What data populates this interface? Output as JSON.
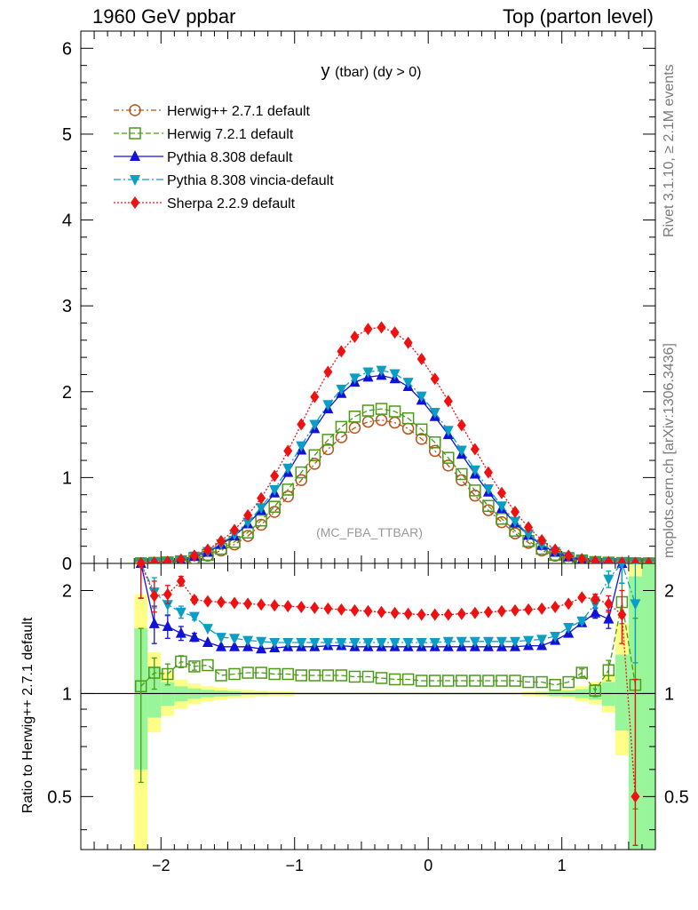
{
  "header": {
    "left": "1960 GeV ppbar",
    "right": "Top (parton level)"
  },
  "side_labels": {
    "rivet": "Rivet 3.1.10, ≥ 2.1M events",
    "mcplots": "mcplots.cern.ch [arXiv:1306.3436]"
  },
  "chart_data": [
    {
      "type": "line",
      "title": "y (tbar) (dy > 0)",
      "watermark": "(MC_FBA_TTBAR)",
      "xlim": [
        -2.6,
        1.7
      ],
      "ylim": [
        0,
        6.2
      ],
      "yticks": [
        0,
        1,
        2,
        3,
        4,
        5,
        6
      ],
      "xlabel": "",
      "ylabel": "",
      "legend_position": "top-left",
      "grid": false,
      "x": [
        -2.15,
        -2.05,
        -1.95,
        -1.85,
        -1.75,
        -1.65,
        -1.55,
        -1.45,
        -1.35,
        -1.25,
        -1.15,
        -1.05,
        -0.95,
        -0.85,
        -0.75,
        -0.65,
        -0.55,
        -0.45,
        -0.35,
        -0.25,
        -0.15,
        -0.05,
        0.05,
        0.15,
        0.25,
        0.35,
        0.45,
        0.55,
        0.65,
        0.75,
        0.85,
        0.95,
        1.05,
        1.15,
        1.25,
        1.35,
        1.45,
        1.55,
        1.65
      ],
      "series": [
        {
          "name": "Herwig++ 2.7.1 default",
          "color": "#b5541c",
          "marker": "open-circle",
          "dash": "6,3,2,3",
          "values": [
            0.002,
            0.005,
            0.01,
            0.02,
            0.05,
            0.09,
            0.15,
            0.22,
            0.32,
            0.45,
            0.6,
            0.78,
            0.97,
            1.16,
            1.33,
            1.47,
            1.58,
            1.65,
            1.67,
            1.64,
            1.57,
            1.45,
            1.31,
            1.14,
            0.97,
            0.79,
            0.62,
            0.48,
            0.35,
            0.24,
            0.15,
            0.09,
            0.05,
            0.03,
            0.015,
            0.008,
            0.004,
            0.002,
            0.001
          ]
        },
        {
          "name": "Herwig 7.2.1 default",
          "color": "#4c9a18",
          "marker": "open-square",
          "dash": "6,3",
          "values": [
            0.002,
            0.006,
            0.012,
            0.025,
            0.06,
            0.1,
            0.17,
            0.25,
            0.36,
            0.5,
            0.66,
            0.86,
            1.06,
            1.26,
            1.44,
            1.59,
            1.71,
            1.78,
            1.8,
            1.77,
            1.69,
            1.56,
            1.41,
            1.23,
            1.04,
            0.85,
            0.67,
            0.52,
            0.38,
            0.26,
            0.17,
            0.1,
            0.06,
            0.035,
            0.016,
            0.009,
            0.005,
            0.002,
            0.001
          ]
        },
        {
          "name": "Pythia 8.308 default",
          "color": "#1212d6",
          "marker": "triangle-up",
          "dash": "",
          "values": [
            0.003,
            0.008,
            0.016,
            0.035,
            0.08,
            0.13,
            0.22,
            0.32,
            0.46,
            0.62,
            0.82,
            1.06,
            1.32,
            1.57,
            1.8,
            1.98,
            2.11,
            2.17,
            2.19,
            2.15,
            2.06,
            1.9,
            1.71,
            1.5,
            1.27,
            1.04,
            0.83,
            0.64,
            0.47,
            0.33,
            0.21,
            0.13,
            0.075,
            0.04,
            0.02,
            0.012,
            0.007,
            0.003,
            0.001
          ]
        },
        {
          "name": "Pythia 8.308 vincia-default",
          "color": "#0b9ec4",
          "marker": "triangle-down",
          "dash": "8,3,2,3",
          "values": [
            0.003,
            0.009,
            0.018,
            0.038,
            0.085,
            0.14,
            0.23,
            0.34,
            0.48,
            0.65,
            0.86,
            1.11,
            1.37,
            1.62,
            1.85,
            2.03,
            2.16,
            2.23,
            2.25,
            2.21,
            2.11,
            1.95,
            1.76,
            1.55,
            1.32,
            1.09,
            0.87,
            0.67,
            0.49,
            0.34,
            0.22,
            0.14,
            0.08,
            0.045,
            0.022,
            0.013,
            0.008,
            0.004,
            0.002
          ]
        },
        {
          "name": "Sherpa 2.2.9 default",
          "color": "#ee1111",
          "marker": "diamond",
          "dash": "2,2",
          "values": [
            0.004,
            0.01,
            0.02,
            0.045,
            0.09,
            0.16,
            0.26,
            0.39,
            0.56,
            0.76,
            1.02,
            1.31,
            1.62,
            1.94,
            2.23,
            2.47,
            2.64,
            2.73,
            2.75,
            2.69,
            2.57,
            2.38,
            2.15,
            1.89,
            1.61,
            1.33,
            1.06,
            0.82,
            0.6,
            0.42,
            0.27,
            0.16,
            0.09,
            0.05,
            0.025,
            0.015,
            0.009,
            0.005,
            0.002
          ]
        }
      ]
    },
    {
      "type": "line",
      "ylabel": "Ratio to Herwig++ 2.7.1 default",
      "xlim": [
        -2.6,
        1.7
      ],
      "ylim": [
        0.35,
        2.4
      ],
      "yscale": "log",
      "yticks": [
        0.5,
        1,
        2
      ],
      "ytick_labels": [
        "0.5",
        "1",
        "2"
      ],
      "xticks": [
        -2,
        -1,
        0,
        1
      ],
      "xtick_labels": [
        "−2",
        "−1",
        "0",
        "1"
      ],
      "reference_line": 1,
      "x": [
        -2.15,
        -2.05,
        -1.95,
        -1.85,
        -1.75,
        -1.65,
        -1.55,
        -1.45,
        -1.35,
        -1.25,
        -1.15,
        -1.05,
        -0.95,
        -0.85,
        -0.75,
        -0.65,
        -0.55,
        -0.45,
        -0.35,
        -0.25,
        -0.15,
        -0.05,
        0.05,
        0.15,
        0.25,
        0.35,
        0.45,
        0.55,
        0.65,
        0.75,
        0.85,
        0.95,
        1.05,
        1.15,
        1.25,
        1.35,
        1.45,
        1.55,
        1.65
      ],
      "bands": {
        "yellow": {
          "color": "#ffff88",
          "lo": [
            0.35,
            0.77,
            0.86,
            0.9,
            0.93,
            0.95,
            0.96,
            0.97,
            0.975,
            0.98,
            0.985,
            0.985,
            0.99,
            0.99,
            0.99,
            0.99,
            0.99,
            0.99,
            0.99,
            0.99,
            0.99,
            0.99,
            0.99,
            0.99,
            0.99,
            0.99,
            0.99,
            0.99,
            0.99,
            0.985,
            0.98,
            0.975,
            0.97,
            0.95,
            0.93,
            0.88,
            0.66,
            0.35,
            0.35
          ],
          "hi": [
            1.95,
            1.32,
            1.16,
            1.1,
            1.07,
            1.05,
            1.04,
            1.03,
            1.025,
            1.02,
            1.015,
            1.015,
            1.01,
            1.01,
            1.01,
            1.01,
            1.01,
            1.01,
            1.01,
            1.01,
            1.01,
            1.01,
            1.01,
            1.01,
            1.01,
            1.01,
            1.01,
            1.01,
            1.01,
            1.015,
            1.02,
            1.025,
            1.03,
            1.05,
            1.08,
            1.14,
            1.6,
            2.4,
            2.4
          ]
        },
        "green": {
          "color": "#99f599",
          "lo": [
            0.6,
            0.85,
            0.92,
            0.95,
            0.965,
            0.975,
            0.98,
            0.985,
            0.99,
            0.99,
            0.993,
            0.993,
            0.995,
            0.995,
            0.995,
            0.995,
            0.995,
            0.995,
            0.995,
            0.995,
            0.995,
            0.995,
            0.995,
            0.995,
            0.995,
            0.995,
            0.995,
            0.995,
            0.995,
            0.993,
            0.99,
            0.985,
            0.98,
            0.97,
            0.96,
            0.92,
            0.78,
            0.35,
            0.35
          ],
          "hi": [
            1.55,
            1.2,
            1.08,
            1.05,
            1.035,
            1.025,
            1.02,
            1.015,
            1.01,
            1.01,
            1.007,
            1.007,
            1.005,
            1.005,
            1.005,
            1.005,
            1.005,
            1.005,
            1.005,
            1.005,
            1.005,
            1.005,
            1.005,
            1.005,
            1.005,
            1.005,
            1.005,
            1.005,
            1.005,
            1.007,
            1.01,
            1.015,
            1.02,
            1.03,
            1.05,
            1.08,
            1.3,
            2.2,
            2.4
          ]
        }
      },
      "series": [
        {
          "name": "Herwig 7.2.1 default",
          "color": "#4c9a18",
          "marker": "open-square",
          "dash": "6,3",
          "values": [
            1.05,
            1.15,
            1.14,
            1.24,
            1.2,
            1.21,
            1.13,
            1.14,
            1.15,
            1.15,
            1.14,
            1.14,
            1.13,
            1.13,
            1.13,
            1.13,
            1.12,
            1.12,
            1.11,
            1.1,
            1.1,
            1.09,
            1.09,
            1.09,
            1.09,
            1.09,
            1.09,
            1.09,
            1.09,
            1.08,
            1.08,
            1.06,
            1.08,
            1.15,
            1.02,
            1.17,
            1.85,
            1.06,
            null
          ],
          "err": [
            0.5,
            0.12,
            0.08,
            0.05,
            0.03,
            0.02,
            0.01,
            0.01,
            0.01,
            0.01,
            0.005,
            0.005,
            0.005,
            0.005,
            0.005,
            0.005,
            0.005,
            0.005,
            0.005,
            0.005,
            0.005,
            0.005,
            0.005,
            0.005,
            0.005,
            0.005,
            0.005,
            0.005,
            0.005,
            0.005,
            0.01,
            0.01,
            0.02,
            0.03,
            0.04,
            0.08,
            0.25,
            0.6,
            0
          ]
        },
        {
          "name": "Pythia 8.308 default",
          "color": "#1212d6",
          "marker": "triangle-up",
          "dash": "",
          "values": [
            2.4,
            1.6,
            1.57,
            1.5,
            1.46,
            1.41,
            1.37,
            1.37,
            1.37,
            1.35,
            1.36,
            1.37,
            1.37,
            1.37,
            1.38,
            1.38,
            1.37,
            1.37,
            1.37,
            1.37,
            1.37,
            1.37,
            1.37,
            1.37,
            1.37,
            1.37,
            1.37,
            1.37,
            1.37,
            1.38,
            1.38,
            1.43,
            1.5,
            1.61,
            1.72,
            1.65,
            2.4,
            null,
            null
          ],
          "err": [
            0.5,
            0.2,
            0.12,
            0.07,
            0.04,
            0.02,
            0.015,
            0.01,
            0.01,
            0.01,
            0.005,
            0.005,
            0.005,
            0.005,
            0.005,
            0.005,
            0.005,
            0.005,
            0.005,
            0.005,
            0.005,
            0.005,
            0.005,
            0.005,
            0.005,
            0.005,
            0.005,
            0.005,
            0.005,
            0.005,
            0.01,
            0.01,
            0.02,
            0.03,
            0.06,
            0.1,
            0.3,
            0,
            0
          ]
        },
        {
          "name": "Pythia 8.308 vincia-default",
          "color": "#0b9ec4",
          "marker": "triangle-down",
          "dash": "8,3,2,3",
          "values": [
            2.4,
            1.98,
            1.82,
            1.73,
            1.68,
            1.55,
            1.46,
            1.45,
            1.43,
            1.42,
            1.41,
            1.41,
            1.41,
            1.41,
            1.41,
            1.41,
            1.41,
            1.41,
            1.41,
            1.41,
            1.41,
            1.41,
            1.41,
            1.42,
            1.42,
            1.42,
            1.42,
            1.42,
            1.42,
            1.43,
            1.44,
            1.47,
            1.56,
            1.63,
            1.83,
            2.16,
            2.4,
            1.83,
            null
          ],
          "err": [
            0.5,
            0.2,
            0.12,
            0.07,
            0.04,
            0.02,
            0.015,
            0.01,
            0.01,
            0.01,
            0.005,
            0.005,
            0.005,
            0.005,
            0.005,
            0.005,
            0.005,
            0.005,
            0.005,
            0.005,
            0.005,
            0.005,
            0.005,
            0.005,
            0.005,
            0.005,
            0.005,
            0.005,
            0.005,
            0.005,
            0.01,
            0.01,
            0.02,
            0.03,
            0.06,
            0.12,
            0.3,
            0.6,
            0
          ]
        },
        {
          "name": "Sherpa 2.2.9 default",
          "color": "#ee1111",
          "marker": "diamond",
          "dash": "2,2",
          "values": [
            2.4,
            1.93,
            1.95,
            2.13,
            1.88,
            1.86,
            1.85,
            1.84,
            1.83,
            1.82,
            1.81,
            1.8,
            1.79,
            1.78,
            1.77,
            1.76,
            1.75,
            1.74,
            1.73,
            1.72,
            1.71,
            1.7,
            1.7,
            1.7,
            1.71,
            1.72,
            1.73,
            1.74,
            1.75,
            1.76,
            1.77,
            1.79,
            1.83,
            1.91,
            1.89,
            1.83,
            1.7,
            0.5,
            null
          ],
          "err": [
            0.5,
            0.2,
            0.12,
            0.07,
            0.04,
            0.02,
            0.015,
            0.01,
            0.01,
            0.01,
            0.005,
            0.005,
            0.005,
            0.005,
            0.005,
            0.005,
            0.005,
            0.005,
            0.005,
            0.005,
            0.005,
            0.005,
            0.005,
            0.005,
            0.005,
            0.005,
            0.005,
            0.005,
            0.005,
            0.005,
            0.01,
            0.01,
            0.02,
            0.03,
            0.06,
            0.1,
            0.3,
            0.6,
            0
          ]
        }
      ]
    }
  ]
}
